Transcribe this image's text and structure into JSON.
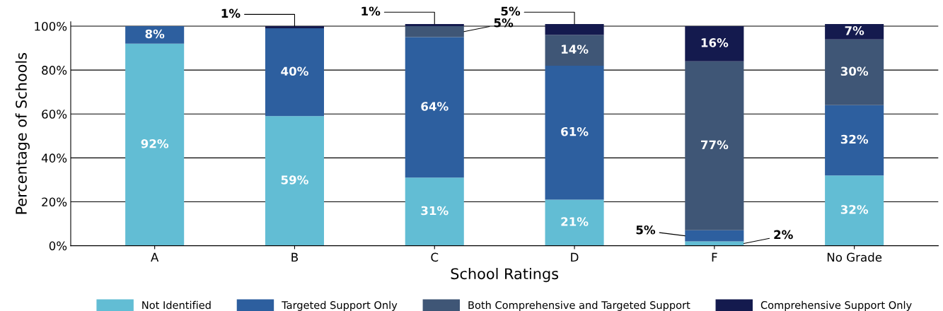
{
  "chart_data": {
    "type": "bar",
    "stacked": true,
    "xlabel": "School Ratings",
    "ylabel": "Percentage of Schools",
    "categories": [
      "A",
      "B",
      "C",
      "D",
      "F",
      "No Grade"
    ],
    "series": [
      {
        "name": "Not Identified",
        "color": "#62bdd4",
        "values": [
          92,
          59,
          31,
          21,
          2,
          32
        ],
        "value_labels": [
          "92%",
          "59%",
          "31%",
          "21%",
          "2%",
          "32%"
        ]
      },
      {
        "name": "Targeted Support Only",
        "color": "#2d5f9f",
        "values": [
          8,
          40,
          64,
          61,
          5,
          32
        ],
        "value_labels": [
          "8%",
          "40%",
          "64%",
          "61%",
          "5%",
          "32%"
        ]
      },
      {
        "name": "Both Comprehensive and Targeted Support",
        "color": "#3f5676",
        "values": [
          0,
          0,
          5,
          14,
          77,
          30
        ],
        "value_labels": [
          null,
          null,
          "5%",
          "14%",
          "77%",
          "30%"
        ]
      },
      {
        "name": "Comprehensive Support Only",
        "color": "#141a4e",
        "values": [
          0,
          1,
          1,
          5,
          16,
          7
        ],
        "value_labels": [
          null,
          "1%",
          "1%",
          "5%",
          "16%",
          "7%"
        ]
      }
    ],
    "ylim": [
      0,
      102
    ],
    "yticks": [
      {
        "value": 0,
        "label": "0%"
      },
      {
        "value": 20,
        "label": "20%"
      },
      {
        "value": 40,
        "label": "40%"
      },
      {
        "value": 60,
        "label": "60%"
      },
      {
        "value": 80,
        "label": "80%"
      },
      {
        "value": 100,
        "label": "100%"
      }
    ],
    "grid": "y",
    "legend": "bottom"
  }
}
